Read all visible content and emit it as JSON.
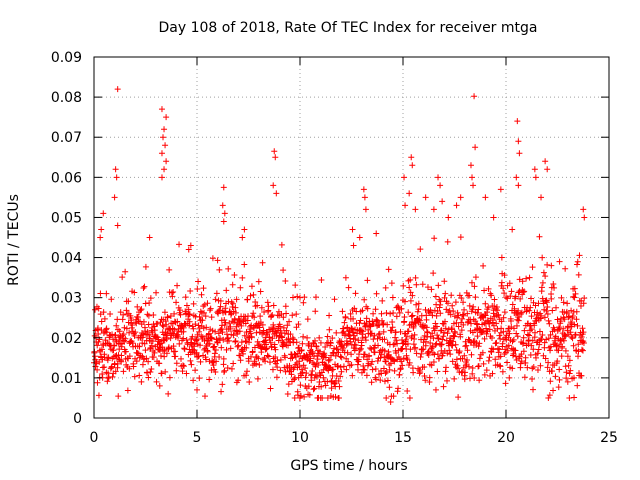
{
  "chart_data": {
    "type": "scatter",
    "title": "Day 108 of 2018, Rate Of TEC Index for receiver mtga",
    "xlabel": "GPS time / hours",
    "ylabel": "ROTI / TECUs",
    "xlim": [
      0,
      25
    ],
    "ylim": [
      0,
      0.09
    ],
    "x_ticks": [
      0,
      5,
      10,
      15,
      20,
      25
    ],
    "x_tick_labels": [
      "0",
      "5",
      "10",
      "15",
      "20",
      "25"
    ],
    "y_ticks": [
      0,
      0.01,
      0.02,
      0.03,
      0.04,
      0.05,
      0.06,
      0.07,
      0.08,
      0.09
    ],
    "y_tick_labels": [
      "0",
      "0.01",
      "0.02",
      "0.03",
      "0.04",
      "0.05",
      "0.06",
      "0.07",
      "0.08",
      "0.09"
    ],
    "grid": true,
    "marker": "+",
    "color": "#ff0000",
    "series": [
      {
        "name": "ROTI",
        "description_envelope": "dense scatter of several thousand points from ~0.005 to ~0.045 TECU across 0-23.8 h",
        "points": [
          [
            1.15,
            0.082
          ],
          [
            18.45,
            0.0802
          ],
          [
            20.55,
            0.074
          ],
          [
            3.3,
            0.077
          ],
          [
            3.5,
            0.075
          ],
          [
            3.4,
            0.072
          ],
          [
            3.35,
            0.07
          ],
          [
            3.45,
            0.068
          ],
          [
            3.3,
            0.066
          ],
          [
            3.5,
            0.064
          ],
          [
            3.4,
            0.062
          ],
          [
            3.3,
            0.06
          ],
          [
            8.75,
            0.0665
          ],
          [
            8.8,
            0.065
          ],
          [
            8.7,
            0.058
          ],
          [
            8.85,
            0.056
          ],
          [
            1.05,
            0.062
          ],
          [
            1.1,
            0.06
          ],
          [
            1.0,
            0.055
          ],
          [
            1.15,
            0.048
          ],
          [
            0.45,
            0.051
          ],
          [
            0.35,
            0.047
          ],
          [
            0.3,
            0.045
          ],
          [
            6.3,
            0.0575
          ],
          [
            6.25,
            0.053
          ],
          [
            6.35,
            0.051
          ],
          [
            6.3,
            0.049
          ],
          [
            7.3,
            0.047
          ],
          [
            7.2,
            0.045
          ],
          [
            2.7,
            0.045
          ],
          [
            4.7,
            0.043
          ],
          [
            4.6,
            0.042
          ],
          [
            12.55,
            0.047
          ],
          [
            12.6,
            0.043
          ],
          [
            13.1,
            0.057
          ],
          [
            13.15,
            0.055
          ],
          [
            13.2,
            0.052
          ],
          [
            12.9,
            0.045
          ],
          [
            13.7,
            0.046
          ],
          [
            15.05,
            0.06
          ],
          [
            15.4,
            0.065
          ],
          [
            15.45,
            0.063
          ],
          [
            15.3,
            0.056
          ],
          [
            15.1,
            0.053
          ],
          [
            15.6,
            0.052
          ],
          [
            16.1,
            0.055
          ],
          [
            16.5,
            0.052
          ],
          [
            16.7,
            0.06
          ],
          [
            16.8,
            0.058
          ],
          [
            16.9,
            0.054
          ],
          [
            17.2,
            0.05
          ],
          [
            17.6,
            0.053
          ],
          [
            17.8,
            0.055
          ],
          [
            18.3,
            0.063
          ],
          [
            18.35,
            0.06
          ],
          [
            18.5,
            0.0675
          ],
          [
            18.4,
            0.058
          ],
          [
            19.0,
            0.055
          ],
          [
            19.4,
            0.05
          ],
          [
            19.75,
            0.057
          ],
          [
            20.6,
            0.069
          ],
          [
            20.65,
            0.066
          ],
          [
            20.5,
            0.06
          ],
          [
            20.6,
            0.058
          ],
          [
            21.4,
            0.062
          ],
          [
            21.45,
            0.06
          ],
          [
            21.9,
            0.064
          ],
          [
            22.0,
            0.062
          ],
          [
            21.7,
            0.055
          ],
          [
            23.75,
            0.052
          ],
          [
            23.8,
            0.05
          ],
          [
            0.05,
            0.027
          ],
          [
            0.15,
            0.012
          ],
          [
            0.6,
            0.031
          ],
          [
            2.3,
            0.009
          ],
          [
            3.6,
            0.006
          ],
          [
            5.0,
            0.007
          ],
          [
            8.0,
            0.034
          ],
          [
            10.0,
            0.03
          ],
          [
            9.9,
            0.0057
          ],
          [
            11.5,
            0.0055
          ],
          [
            14.4,
            0.004
          ],
          [
            16.6,
            0.007
          ],
          [
            23.0,
            0.009
          ],
          [
            23.3,
            0.01
          ],
          [
            22.2,
            0.038
          ],
          [
            22.6,
            0.039
          ],
          [
            19.8,
            0.04
          ],
          [
            20.3,
            0.047
          ]
        ]
      }
    ]
  }
}
